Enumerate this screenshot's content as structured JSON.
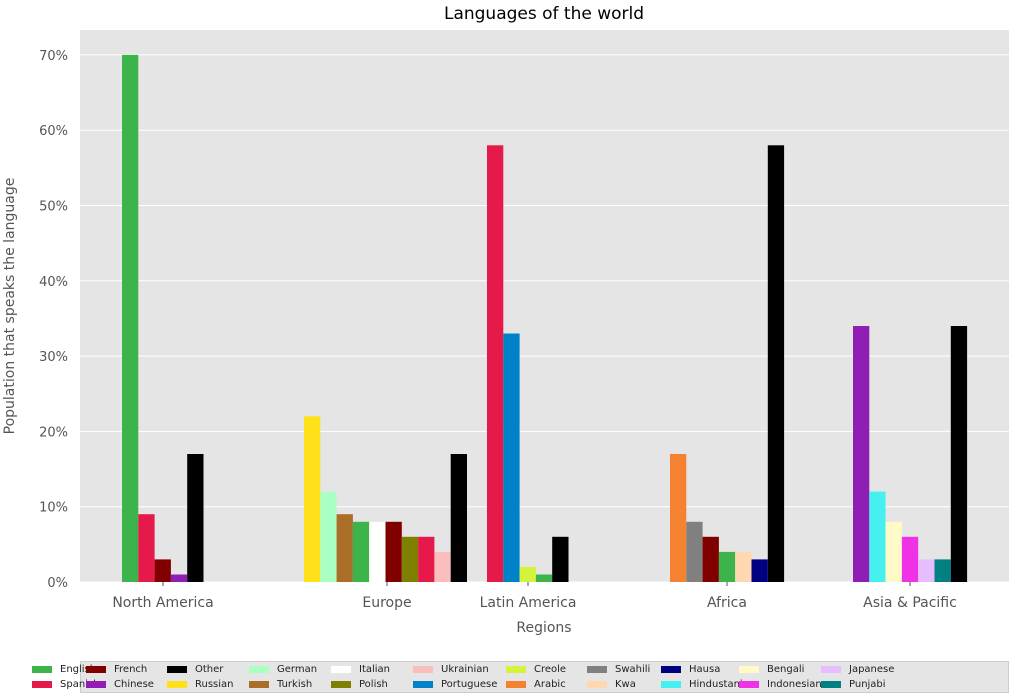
{
  "chart_data": {
    "type": "bar",
    "title": "Languages of the world",
    "xlabel": "Regions",
    "ylabel": "Population that speaks the language",
    "ylim": [
      0,
      72
    ],
    "yticks": [
      "0%",
      "10%",
      "20%",
      "30%",
      "40%",
      "50%",
      "60%",
      "70%"
    ],
    "grid": true,
    "legend_placement": "bottom",
    "regions": [
      {
        "name": "North America",
        "bars": [
          {
            "language": "English",
            "value": 70
          },
          {
            "language": "Spanish",
            "value": 9
          },
          {
            "language": "French",
            "value": 3
          },
          {
            "language": "Chinese",
            "value": 1
          },
          {
            "language": "Other",
            "value": 17
          }
        ]
      },
      {
        "name": "Europe",
        "bars": [
          {
            "language": "Russian",
            "value": 22
          },
          {
            "language": "German",
            "value": 12
          },
          {
            "language": "Turkish",
            "value": 9
          },
          {
            "language": "English",
            "value": 8
          },
          {
            "language": "Italian",
            "value": 8
          },
          {
            "language": "French",
            "value": 8
          },
          {
            "language": "Polish",
            "value": 6
          },
          {
            "language": "Spanish",
            "value": 6
          },
          {
            "language": "Ukrainian",
            "value": 4
          },
          {
            "language": "Other",
            "value": 17
          }
        ]
      },
      {
        "name": "Latin America",
        "bars": [
          {
            "language": "Spanish",
            "value": 58
          },
          {
            "language": "Portuguese",
            "value": 33
          },
          {
            "language": "Creole",
            "value": 2
          },
          {
            "language": "English",
            "value": 1
          },
          {
            "language": "Other",
            "value": 6
          }
        ]
      },
      {
        "name": "Africa",
        "bars": [
          {
            "language": "Arabic",
            "value": 17
          },
          {
            "language": "Swahili",
            "value": 8
          },
          {
            "language": "French",
            "value": 6
          },
          {
            "language": "English",
            "value": 4
          },
          {
            "language": "Kwa",
            "value": 4
          },
          {
            "language": "Hausa",
            "value": 3
          },
          {
            "language": "Other",
            "value": 58
          }
        ]
      },
      {
        "name": "Asia & Pacific",
        "bars": [
          {
            "language": "Chinese",
            "value": 34
          },
          {
            "language": "Hindustani",
            "value": 12
          },
          {
            "language": "Bengali",
            "value": 8
          },
          {
            "language": "Indonesian",
            "value": 6
          },
          {
            "language": "Japanese",
            "value": 3
          },
          {
            "language": "Punjabi",
            "value": 3
          },
          {
            "language": "Other",
            "value": 34
          }
        ]
      }
    ],
    "legend": [
      {
        "language": "English",
        "color": "#3cb44b"
      },
      {
        "language": "Spanish",
        "color": "#e6194b"
      },
      {
        "language": "French",
        "color": "#800000"
      },
      {
        "language": "Chinese",
        "color": "#911eb4"
      },
      {
        "language": "Other",
        "color": "#000000"
      },
      {
        "language": "Russian",
        "color": "#ffe119"
      },
      {
        "language": "German",
        "color": "#aaffc3"
      },
      {
        "language": "Turkish",
        "color": "#aa6e28"
      },
      {
        "language": "Italian",
        "color": "#ffffff"
      },
      {
        "language": "Polish",
        "color": "#808000"
      },
      {
        "language": "Ukrainian",
        "color": "#fabebe"
      },
      {
        "language": "Portuguese",
        "color": "#0082c8"
      },
      {
        "language": "Creole",
        "color": "#d2f53c"
      },
      {
        "language": "Arabic",
        "color": "#f58231"
      },
      {
        "language": "Swahili",
        "color": "#808080"
      },
      {
        "language": "Kwa",
        "color": "#ffd8b1"
      },
      {
        "language": "Hausa",
        "color": "#000080"
      },
      {
        "language": "Hindustani",
        "color": "#46f0f0"
      },
      {
        "language": "Bengali",
        "color": "#fffac8"
      },
      {
        "language": "Indonesian",
        "color": "#f032e6"
      },
      {
        "language": "Japanese",
        "color": "#e6beff"
      },
      {
        "language": "Punjabi",
        "color": "#008080"
      }
    ]
  }
}
